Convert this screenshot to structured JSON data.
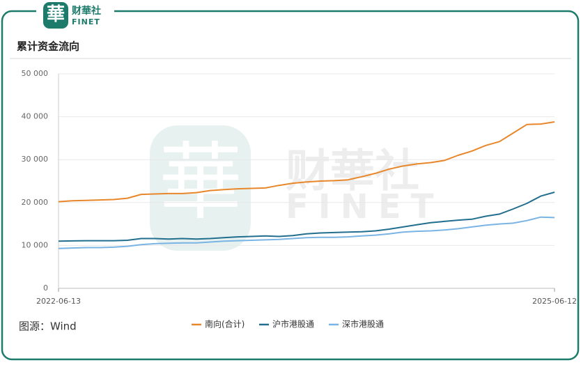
{
  "logo": {
    "mark": "華",
    "name": "财華社",
    "brand": "FINET"
  },
  "chart_data": {
    "type": "line",
    "title": "累计资金流向",
    "source": "图源：Wind",
    "categories": [
      "2022-06-13",
      null,
      null,
      null,
      null,
      null,
      null,
      null,
      null,
      null,
      null,
      null,
      null,
      null,
      null,
      null,
      null,
      null,
      null,
      null,
      null,
      null,
      null,
      null,
      null,
      null,
      null,
      null,
      null,
      null,
      null,
      null,
      null,
      null,
      null,
      null,
      "2025-06-12"
    ],
    "ylim": [
      0,
      50000
    ],
    "yticks": [
      0,
      {
        "value": 10000,
        "label": "10 000"
      },
      {
        "value": 20000,
        "label": "20 000"
      },
      {
        "value": 30000,
        "label": "30 000"
      },
      {
        "value": 40000,
        "label": "40 000"
      },
      {
        "value": 50000,
        "label": "50 000"
      }
    ],
    "grid": true,
    "legend": "bottom",
    "series": [
      {
        "name": "南向(合计)",
        "color": "#e8872a",
        "values": [
          20200,
          20400,
          20500,
          20600,
          20700,
          21000,
          21900,
          22000,
          22100,
          22100,
          22300,
          22800,
          23000,
          23200,
          23300,
          23400,
          24000,
          24500,
          24800,
          25000,
          25100,
          25300,
          26000,
          26800,
          27800,
          28500,
          29000,
          29300,
          29800,
          31000,
          32000,
          33300,
          34200,
          36200,
          38200,
          38300,
          38800
        ]
      },
      {
        "name": "沪市港股通",
        "color": "#226e8e",
        "values": [
          11000,
          11050,
          11100,
          11100,
          11100,
          11200,
          11600,
          11600,
          11500,
          11600,
          11500,
          11600,
          11800,
          12000,
          12100,
          12200,
          12100,
          12300,
          12700,
          12900,
          13000,
          13100,
          13200,
          13400,
          13800,
          14300,
          14800,
          15300,
          15600,
          15900,
          16100,
          16800,
          17300,
          18500,
          19800,
          21500,
          22400
        ]
      },
      {
        "name": "深市港股通",
        "color": "#7ab4e4",
        "values": [
          9300,
          9400,
          9500,
          9500,
          9600,
          9800,
          10200,
          10400,
          10500,
          10600,
          10600,
          10800,
          11000,
          11100,
          11200,
          11300,
          11400,
          11600,
          11800,
          11900,
          11900,
          12000,
          12200,
          12400,
          12700,
          13100,
          13300,
          13400,
          13600,
          13900,
          14300,
          14700,
          15000,
          15200,
          15800,
          16600,
          16500
        ]
      }
    ]
  }
}
